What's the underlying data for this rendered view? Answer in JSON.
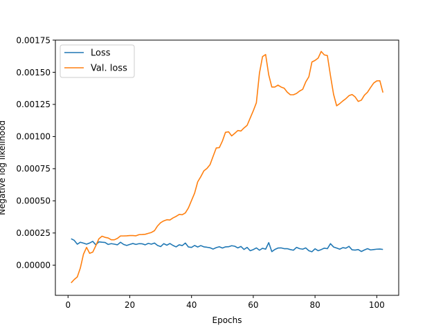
{
  "chart_data": {
    "type": "line",
    "xlabel": "Epochs",
    "ylabel": "Negative log likelihood",
    "xlim": [
      -4.1,
      107.1
    ],
    "ylim": [
      -0.000235,
      0.00175
    ],
    "xticks": [
      0,
      20,
      40,
      60,
      80,
      100
    ],
    "xtick_labels": [
      "0",
      "20",
      "40",
      "60",
      "80",
      "100"
    ],
    "yticks": [
      0.0,
      0.00025,
      0.0005,
      0.00075,
      0.001,
      0.00125,
      0.0015,
      0.00175
    ],
    "ytick_labels": [
      "0.00000",
      "0.00025",
      "0.00050",
      "0.00075",
      "0.00100",
      "0.00125",
      "0.00150",
      "0.00175"
    ],
    "legend_placement": "top-left",
    "grid": false,
    "series": [
      {
        "name": "Loss",
        "color": "#1f77b4",
        "x": [
          1,
          2,
          3,
          4,
          5,
          6,
          7,
          8,
          9,
          10,
          11,
          12,
          13,
          14,
          15,
          16,
          17,
          18,
          19,
          20,
          21,
          22,
          23,
          24,
          25,
          26,
          27,
          28,
          29,
          30,
          31,
          32,
          33,
          34,
          35,
          36,
          37,
          38,
          39,
          40,
          41,
          42,
          43,
          44,
          45,
          46,
          47,
          48,
          49,
          50,
          51,
          52,
          53,
          54,
          55,
          56,
          57,
          58,
          59,
          60,
          61,
          62,
          63,
          64,
          65,
          66,
          67,
          68,
          69,
          70,
          71,
          72,
          73,
          74,
          75,
          76,
          77,
          78,
          79,
          80,
          81,
          82,
          83,
          84,
          85,
          86,
          87,
          88,
          89,
          90,
          91,
          92,
          93,
          94,
          95,
          96,
          97,
          98,
          99,
          100,
          101,
          102
        ],
        "values": [
          0.000205,
          0.000193,
          0.000163,
          0.000178,
          0.000171,
          0.000163,
          0.000172,
          0.000185,
          0.000158,
          0.000181,
          0.000178,
          0.000176,
          0.000161,
          0.000167,
          0.000163,
          0.000158,
          0.000178,
          0.000161,
          0.000153,
          0.000161,
          0.000168,
          0.000161,
          0.000167,
          0.000166,
          0.000158,
          0.000169,
          0.000163,
          0.000172,
          0.000153,
          0.000144,
          0.000167,
          0.000155,
          0.000168,
          0.000153,
          0.000142,
          0.000158,
          0.000152,
          0.000172,
          0.000141,
          0.000138,
          0.000153,
          0.000141,
          0.000152,
          0.000142,
          0.000139,
          0.000135,
          0.000125,
          0.000136,
          0.000143,
          0.000133,
          0.000142,
          0.000143,
          0.000151,
          0.000147,
          0.000134,
          0.000145,
          0.000122,
          0.000138,
          0.000112,
          0.000121,
          0.000134,
          0.000116,
          0.000131,
          0.000124,
          0.000175,
          0.000105,
          0.000122,
          0.000133,
          0.000134,
          0.000128,
          0.000128,
          0.000121,
          0.000116,
          0.000138,
          0.000128,
          0.000124,
          0.000134,
          0.000112,
          0.000104,
          0.000127,
          0.000112,
          0.000121,
          0.000132,
          0.000128,
          0.000167,
          0.000141,
          0.000133,
          0.000124,
          0.000136,
          0.000132,
          0.000146,
          0.000119,
          0.000117,
          0.000121,
          0.000106,
          0.000118,
          0.000128,
          0.000118,
          0.000121,
          0.000124,
          0.000125,
          0.000122
        ]
      },
      {
        "name": "Val. loss",
        "color": "#ff7f0e",
        "x": [
          1,
          2,
          3,
          4,
          5,
          6,
          7,
          8,
          9,
          10,
          11,
          12,
          13,
          14,
          15,
          16,
          17,
          18,
          19,
          20,
          21,
          22,
          23,
          24,
          25,
          26,
          27,
          28,
          29,
          30,
          31,
          32,
          33,
          34,
          35,
          36,
          37,
          38,
          39,
          40,
          41,
          42,
          43,
          44,
          45,
          46,
          47,
          48,
          49,
          50,
          51,
          52,
          53,
          54,
          55,
          56,
          57,
          58,
          59,
          60,
          61,
          62,
          63,
          64,
          65,
          66,
          67,
          68,
          69,
          70,
          71,
          72,
          73,
          74,
          75,
          76,
          77,
          78,
          79,
          80,
          81,
          82,
          83,
          84,
          85,
          86,
          87,
          88,
          89,
          90,
          91,
          92,
          93,
          94,
          95,
          96,
          97,
          98,
          99,
          100,
          101,
          102
        ],
        "values": [
          -0.000138,
          -0.000112,
          -9.2e-05,
          -2.1e-05,
          8.5e-05,
          0.000138,
          9.2e-05,
          0.000101,
          0.000151,
          0.000205,
          0.000225,
          0.000216,
          0.000211,
          0.000197,
          0.000197,
          0.000208,
          0.000227,
          0.000227,
          0.000228,
          0.00023,
          0.00023,
          0.000228,
          0.000237,
          0.000238,
          0.00024,
          0.000247,
          0.000254,
          0.000268,
          0.000305,
          0.00033,
          0.000344,
          0.000353,
          0.000351,
          0.000367,
          0.000379,
          0.000394,
          0.000392,
          0.000406,
          0.000445,
          0.000503,
          0.00056,
          0.000648,
          0.000688,
          0.000733,
          0.000752,
          0.000782,
          0.000847,
          0.000911,
          0.000914,
          0.000965,
          0.001033,
          0.001037,
          0.001005,
          0.001025,
          0.001047,
          0.001043,
          0.001067,
          0.001087,
          0.001144,
          0.0012,
          0.001263,
          0.001493,
          0.001622,
          0.001638,
          0.00148,
          0.001385,
          0.001385,
          0.0014,
          0.001385,
          0.001376,
          0.001345,
          0.001325,
          0.001325,
          0.001335,
          0.001354,
          0.001367,
          0.001425,
          0.001465,
          0.00158,
          0.001592,
          0.00161,
          0.001662,
          0.001635,
          0.00163,
          0.001474,
          0.001329,
          0.001239,
          0.001256,
          0.001277,
          0.001295,
          0.001318,
          0.001327,
          0.001308,
          0.001273,
          0.001283,
          0.001322,
          0.001345,
          0.001382,
          0.001416,
          0.001433,
          0.001434,
          0.001342
        ]
      }
    ]
  }
}
